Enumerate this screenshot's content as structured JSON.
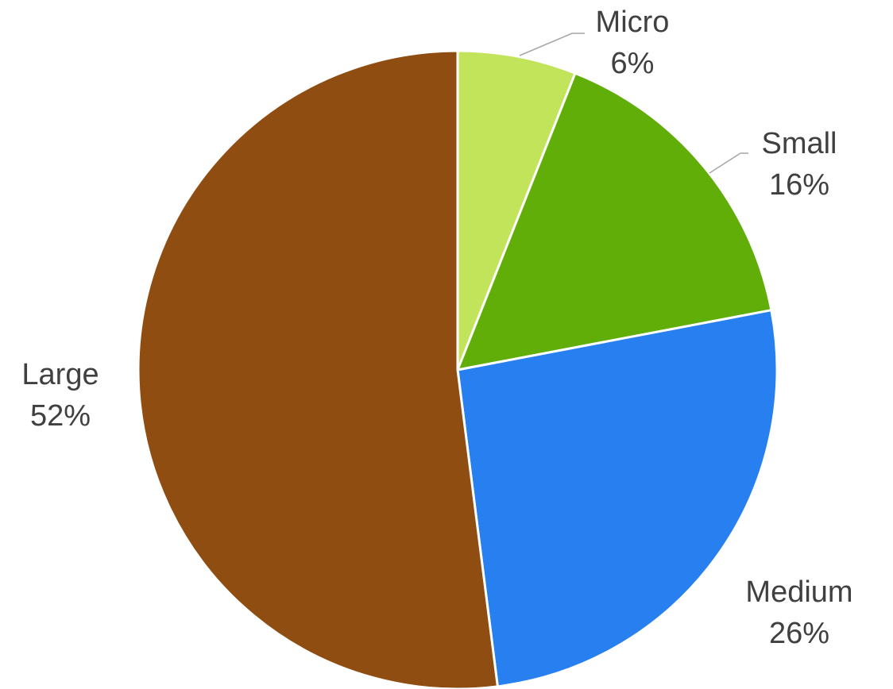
{
  "chart_data": {
    "type": "pie",
    "title": "",
    "start_angle_deg": 0,
    "direction": "clockwise",
    "slices": [
      {
        "label": "Micro",
        "value": 6,
        "value_label": "6%",
        "color": "#c2e45a"
      },
      {
        "label": "Small",
        "value": 16,
        "value_label": "16%",
        "color": "#62ae08"
      },
      {
        "label": "Medium",
        "value": 26,
        "value_label": "26%",
        "color": "#2880f0"
      },
      {
        "label": "Large",
        "value": 52,
        "value_label": "52%",
        "color": "#8f4d12"
      }
    ],
    "legend": "none",
    "data_labels": "outside, category name and percentage"
  }
}
